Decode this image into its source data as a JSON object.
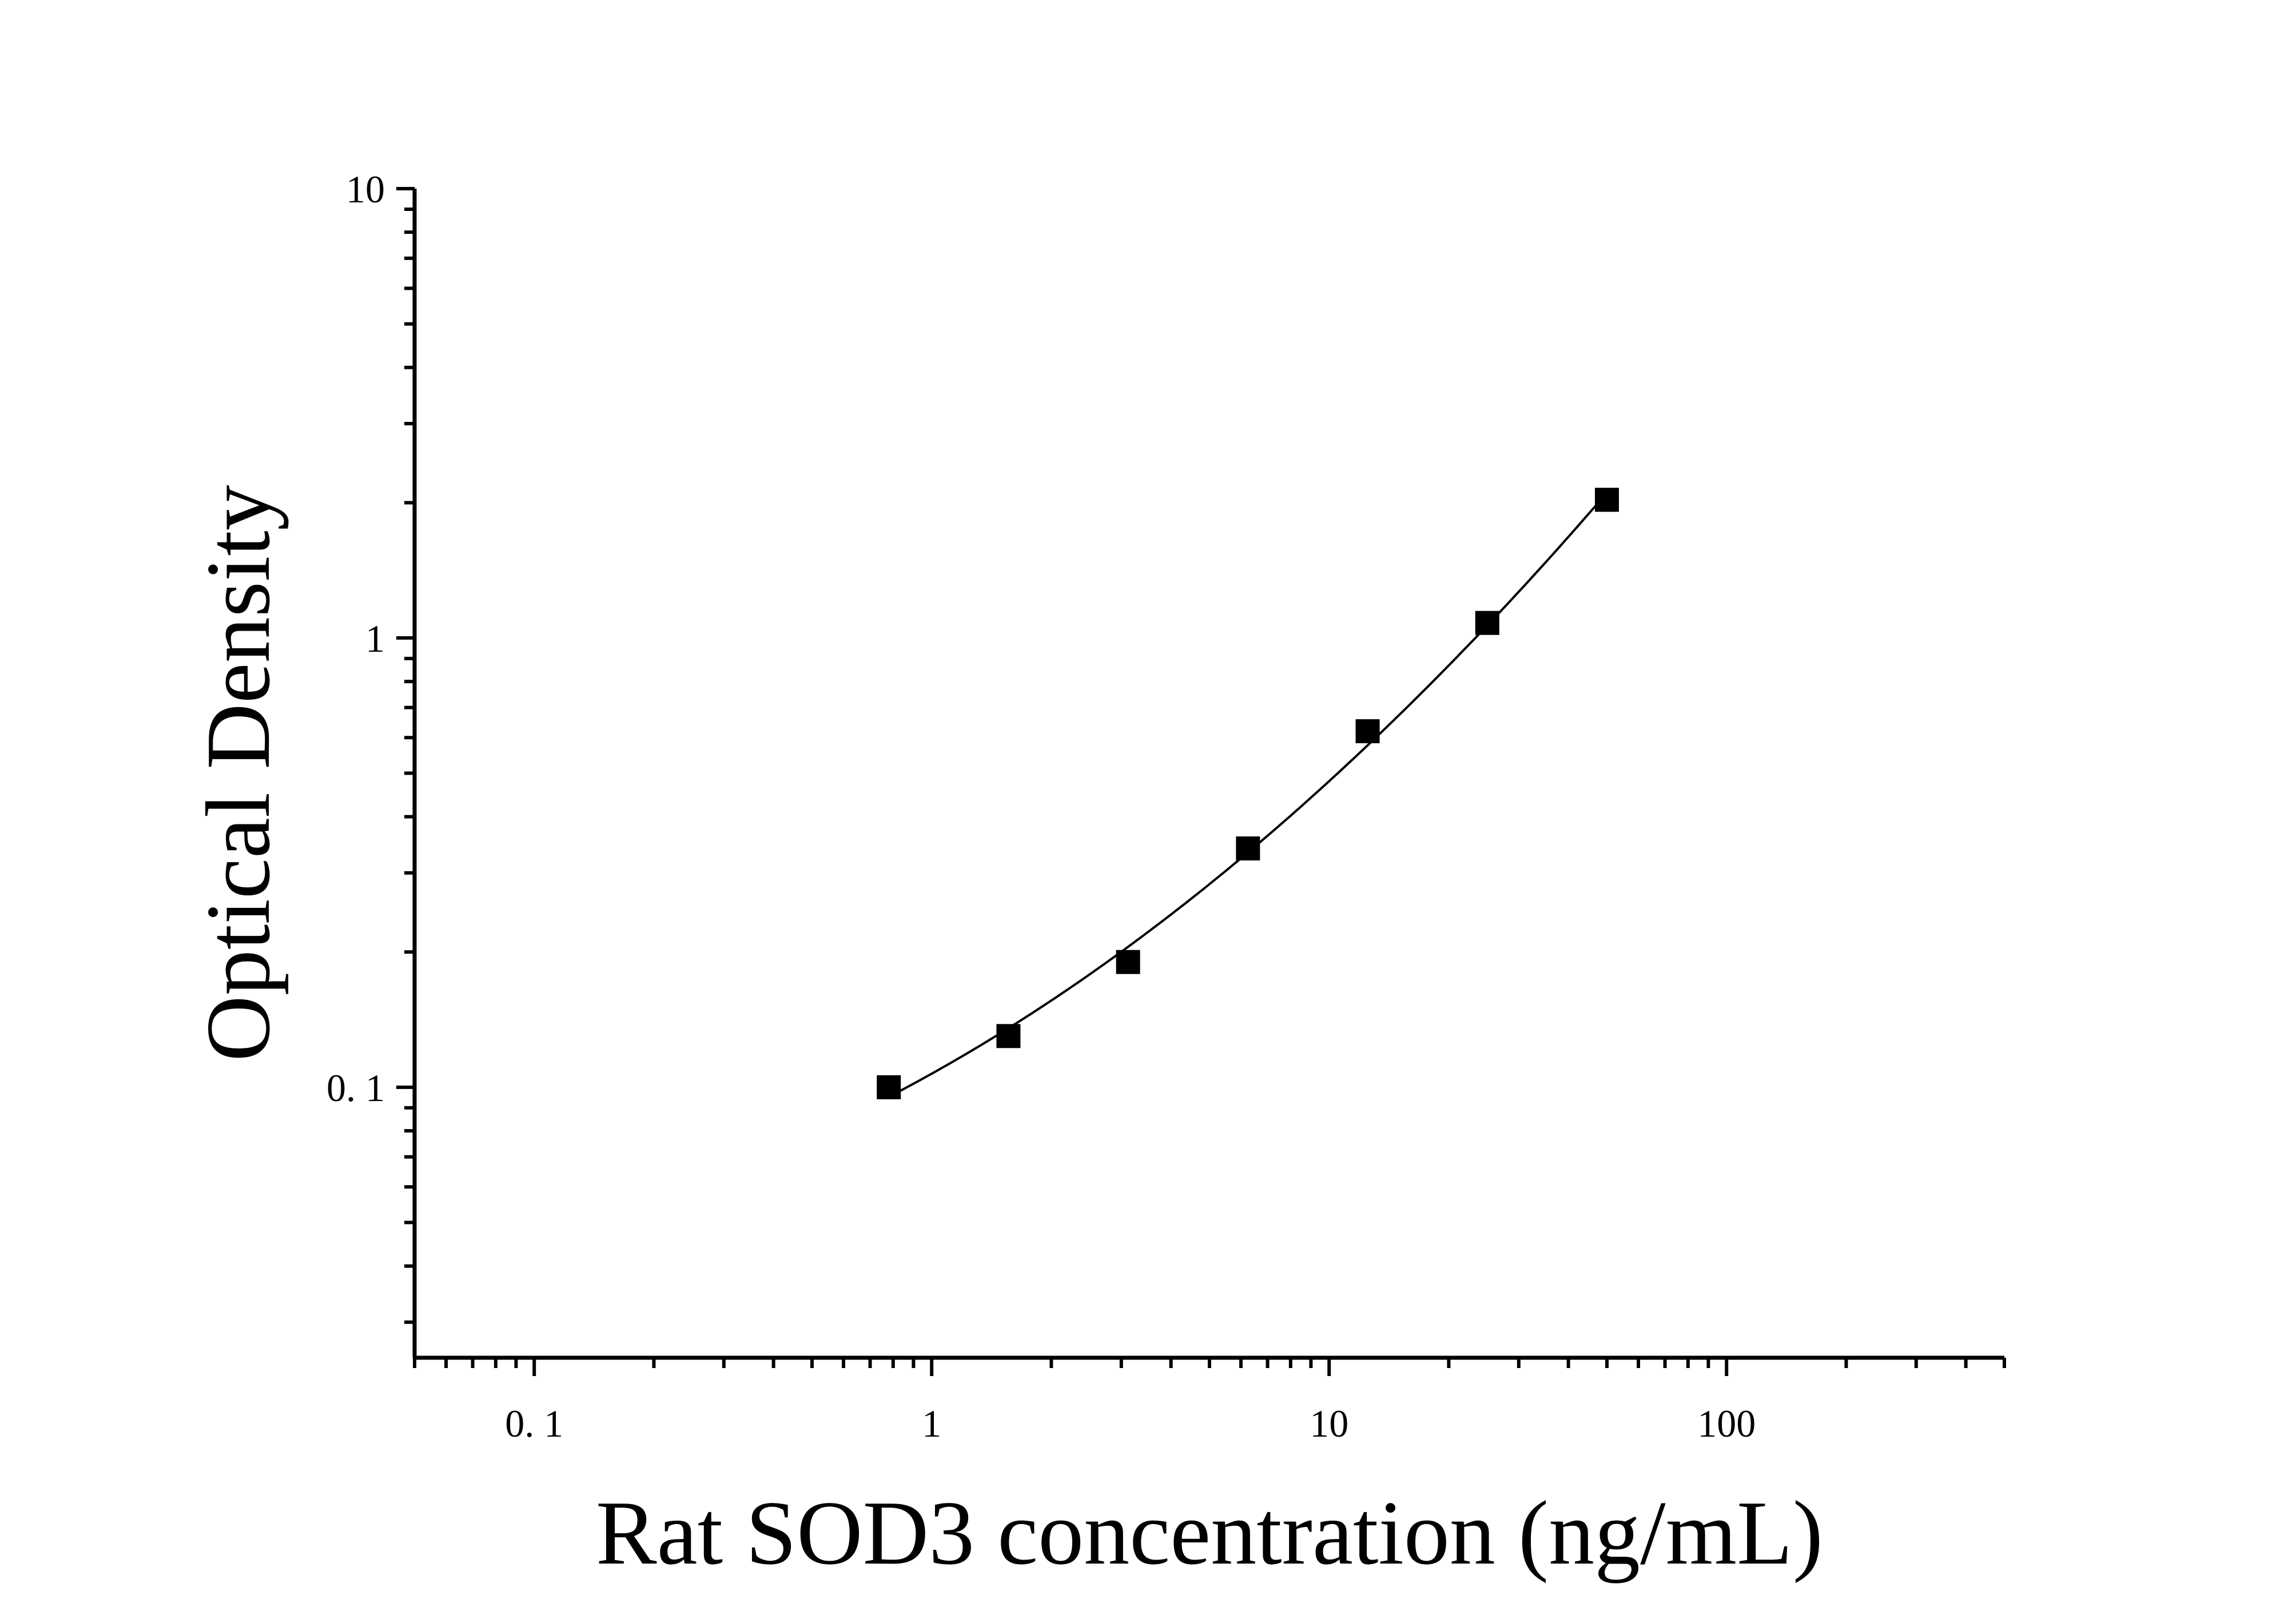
{
  "chart_data": {
    "type": "scatter",
    "title": "",
    "xlabel": "Rat SOD3 concentration (ng/mL)",
    "ylabel": "Optical Density",
    "x_scale": "log",
    "y_scale": "log",
    "xlim": [
      0.05,
      500
    ],
    "ylim": [
      0.025,
      10
    ],
    "x_ticks": [
      {
        "value": 0.1,
        "label": "0. 1"
      },
      {
        "value": 1,
        "label": "1"
      },
      {
        "value": 10,
        "label": "10"
      },
      {
        "value": 100,
        "label": "100"
      }
    ],
    "y_ticks": [
      {
        "value": 0.1,
        "label": "0. 1"
      },
      {
        "value": 1,
        "label": "1"
      },
      {
        "value": 10,
        "label": "10"
      }
    ],
    "grid": false,
    "legend": "none",
    "series": [
      {
        "x": [
          0.78,
          1.56,
          3.12,
          6.25,
          12.5,
          25,
          50
        ],
        "y": [
          0.1,
          0.13,
          0.19,
          0.34,
          0.62,
          1.08,
          2.03
        ],
        "marker": "square",
        "fit_curve": true
      }
    ],
    "colors": {
      "marker": "#000000",
      "line": "#000000",
      "axis": "#000000"
    }
  }
}
